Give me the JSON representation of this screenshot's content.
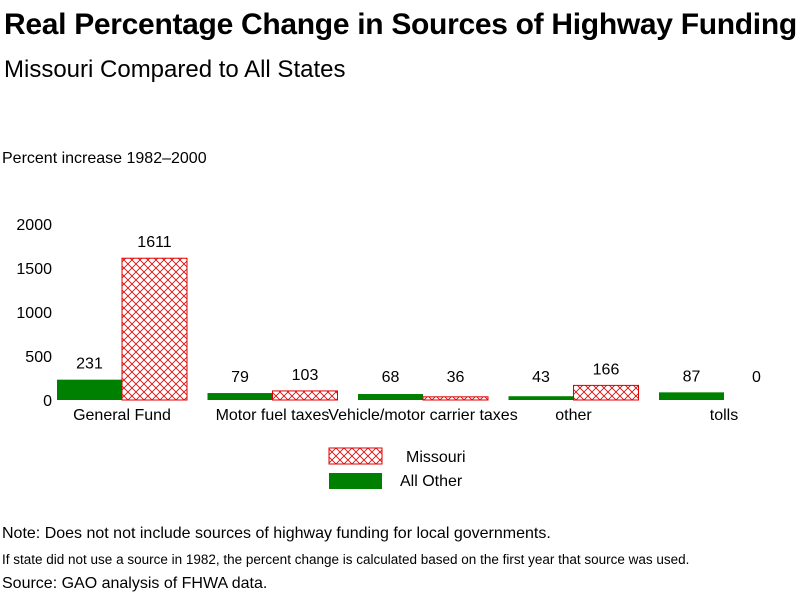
{
  "title": "Real Percentage Change in Sources of Highway Funding",
  "subtitle": "Missouri Compared to All States",
  "colors": {
    "missouri": "#e00000",
    "all_other": "#008000"
  },
  "chart_data": {
    "type": "bar",
    "title": "Real Percentage Change in Sources of Highway Funding",
    "subtitle": "Missouri Compared to All States",
    "ylabel": "Percent increase 1982–2000",
    "xlabel": "",
    "ylim": [
      0,
      2000
    ],
    "yticks": [
      "0",
      "500",
      "1000",
      "1500",
      "2000"
    ],
    "categories": [
      "General Fund",
      "Motor fuel taxes",
      "Vehicle/motor carrier taxes",
      "other",
      "tolls"
    ],
    "series": [
      {
        "name": "All Other",
        "values": [
          231,
          79,
          68,
          43,
          87
        ],
        "labels": [
          "231",
          "79",
          "68",
          "43",
          "87"
        ]
      },
      {
        "name": "Missouri",
        "values": [
          1611,
          103,
          36,
          166,
          0
        ],
        "labels": [
          "1611",
          "103",
          "36",
          "166",
          "0"
        ]
      }
    ],
    "legend": [
      "Missouri",
      "All Other"
    ],
    "grid": false
  },
  "notes": {
    "note1": "Note: Does not not include sources of highway funding for local governments.",
    "note2": "If state did not use a source in 1982, the percent change is calculated based on the first year that source was used.",
    "source": "Source: GAO analysis of FHWA data."
  }
}
